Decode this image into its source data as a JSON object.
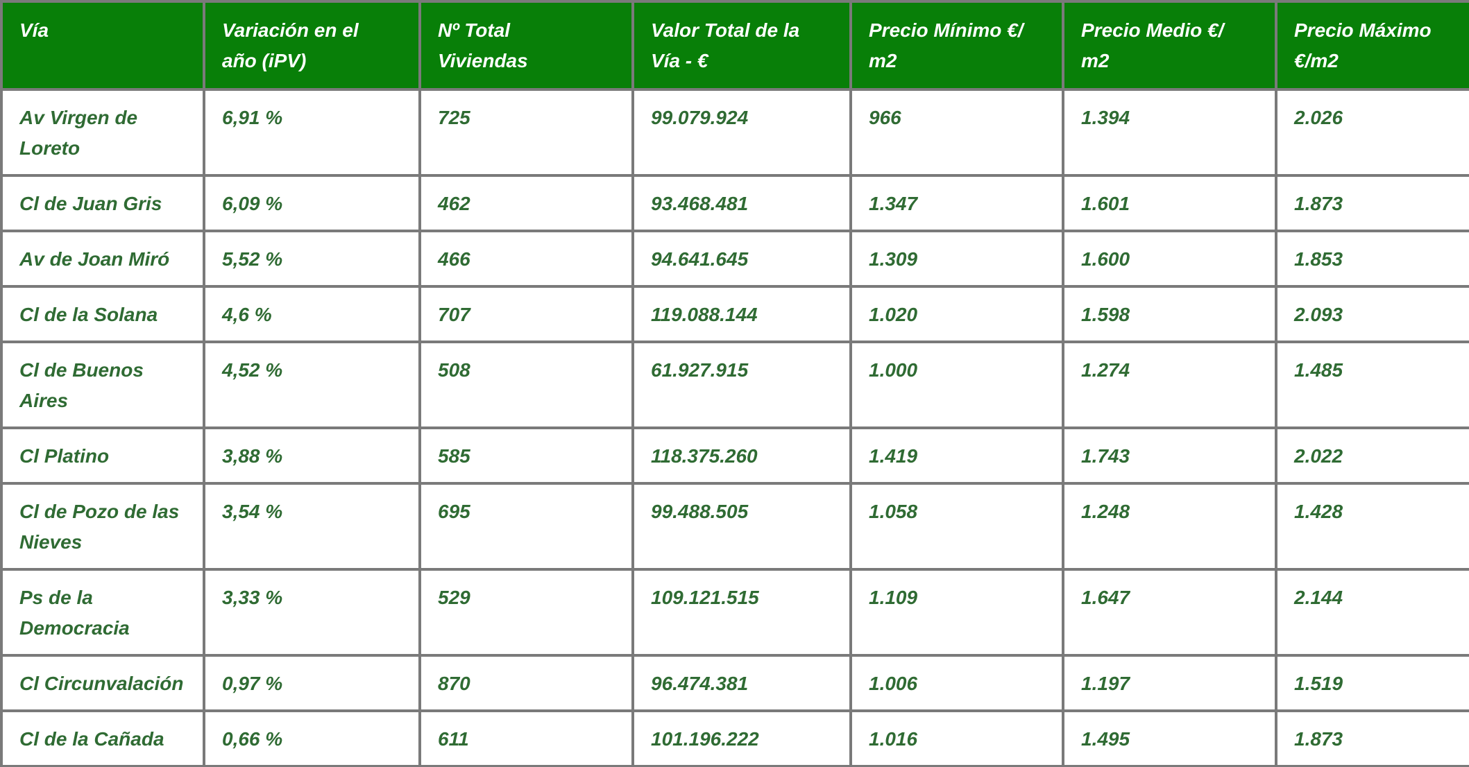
{
  "colors": {
    "header_background": "#087f08",
    "header_text": "#ffffff",
    "cell_text": "#2f6b33",
    "grid_border": "#7a7a7a",
    "row_background": "#ffffff"
  },
  "table": {
    "columns": [
      {
        "key": "via",
        "label": "Vía"
      },
      {
        "key": "variacion_ipv",
        "label": "Variación en el\naño (iPV)"
      },
      {
        "key": "num_viviendas",
        "label": "Nº Total\nViviendas"
      },
      {
        "key": "valor_total",
        "label": "Valor Total de la\nVía - €"
      },
      {
        "key": "precio_minimo",
        "label": "Precio Mínimo €/\nm2"
      },
      {
        "key": "precio_medio",
        "label": "Precio Medio  €/\nm2"
      },
      {
        "key": "precio_maximo",
        "label": "Precio Máximo\n€/m2"
      }
    ],
    "rows": [
      {
        "via": "Av Virgen de Loreto",
        "variacion_ipv": "6,91 %",
        "num_viviendas": "725",
        "valor_total": "99.079.924",
        "precio_minimo": "966",
        "precio_medio": "1.394",
        "precio_maximo": "2.026"
      },
      {
        "via": "Cl de Juan Gris",
        "variacion_ipv": "6,09 %",
        "num_viviendas": "462",
        "valor_total": "93.468.481",
        "precio_minimo": "1.347",
        "precio_medio": "1.601",
        "precio_maximo": "1.873"
      },
      {
        "via": "Av de Joan Miró",
        "variacion_ipv": "5,52 %",
        "num_viviendas": "466",
        "valor_total": "94.641.645",
        "precio_minimo": "1.309",
        "precio_medio": "1.600",
        "precio_maximo": "1.853"
      },
      {
        "via": "Cl de la Solana",
        "variacion_ipv": "4,6 %",
        "num_viviendas": "707",
        "valor_total": "119.088.144",
        "precio_minimo": "1.020",
        "precio_medio": "1.598",
        "precio_maximo": "2.093"
      },
      {
        "via": "Cl de Buenos Aires",
        "variacion_ipv": "4,52 %",
        "num_viviendas": "508",
        "valor_total": "61.927.915",
        "precio_minimo": "1.000",
        "precio_medio": "1.274",
        "precio_maximo": "1.485"
      },
      {
        "via": "Cl Platino",
        "variacion_ipv": "3,88 %",
        "num_viviendas": "585",
        "valor_total": "118.375.260",
        "precio_minimo": "1.419",
        "precio_medio": "1.743",
        "precio_maximo": "2.022"
      },
      {
        "via": "Cl de Pozo de las Nieves",
        "variacion_ipv": "3,54 %",
        "num_viviendas": "695",
        "valor_total": "99.488.505",
        "precio_minimo": "1.058",
        "precio_medio": "1.248",
        "precio_maximo": "1.428"
      },
      {
        "via": "Ps de la Democracia",
        "variacion_ipv": "3,33 %",
        "num_viviendas": "529",
        "valor_total": "109.121.515",
        "precio_minimo": "1.109",
        "precio_medio": "1.647",
        "precio_maximo": "2.144"
      },
      {
        "via": "Cl Circunvalación",
        "variacion_ipv": "0,97 %",
        "num_viviendas": "870",
        "valor_total": "96.474.381",
        "precio_minimo": "1.006",
        "precio_medio": "1.197",
        "precio_maximo": "1.519"
      },
      {
        "via": "Cl de la Cañada",
        "variacion_ipv": "0,66 %",
        "num_viviendas": "611",
        "valor_total": "101.196.222",
        "precio_minimo": "1.016",
        "precio_medio": "1.495",
        "precio_maximo": "1.873"
      }
    ]
  }
}
